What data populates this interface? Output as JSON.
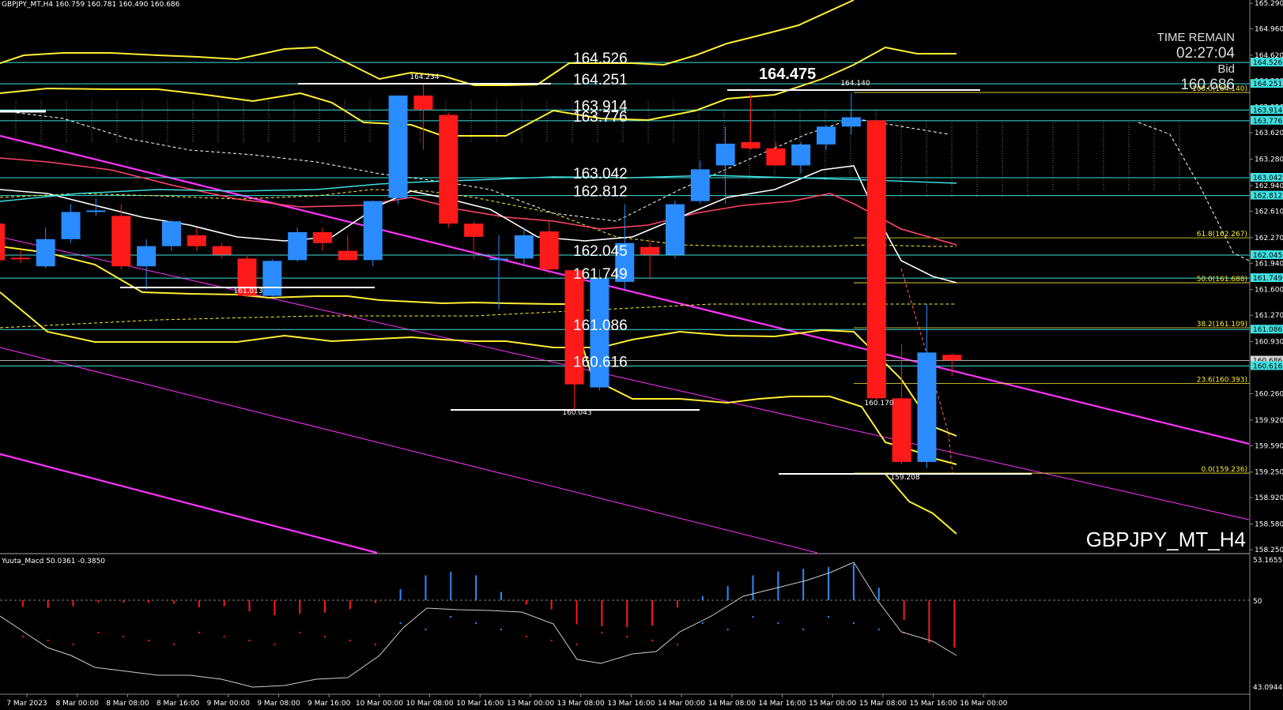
{
  "header": {
    "symbol_info": "GBPJPY_MT,H4  160.759 160.781 160.490 160.686"
  },
  "overlay": {
    "time_remain_label": "TIME REMAIN",
    "time_remain_value": "02:27:04",
    "bid_label": "Bid",
    "bid_value": "160.686",
    "symbol_watermark": "GBPJPY_MT_H4",
    "big_label": "164.475"
  },
  "price_axis": {
    "ticks": [
      "165.290",
      "164.960",
      "164.620",
      "164.290",
      "163.950",
      "163.620",
      "163.280",
      "162.940",
      "162.610",
      "162.270",
      "161.940",
      "161.600",
      "161.270",
      "160.930",
      "160.600",
      "160.260",
      "159.920",
      "159.590",
      "159.250",
      "158.920",
      "158.580",
      "158.250"
    ]
  },
  "level_badges": [
    "164.526",
    "164.251",
    "163.914",
    "163.776",
    "163.042",
    "162.812",
    "162.045",
    "161.749",
    "161.086",
    "160.686",
    "160.616"
  ],
  "level_labels": [
    "164.526",
    "164.251",
    "163.914",
    "163.776",
    "163.042",
    "162.812",
    "162.045",
    "161.749",
    "161.086",
    "160.616"
  ],
  "fib_labels": [
    "100.0(164.140)",
    "61.8(162.267)",
    "50.0(161.688)",
    "38.2(161.109)",
    "23.6(160.393)",
    "0.0(159.236)"
  ],
  "swing_labels": [
    "164.234",
    "161.013",
    "160.043",
    "164.140",
    "160.170",
    "159.208"
  ],
  "time_axis": {
    "ticks": [
      "7 Mar 2023",
      "8 Mar 00:00",
      "8 Mar 08:00",
      "8 Mar 16:00",
      "9 Mar 00:00",
      "9 Mar 08:00",
      "9 Mar 16:00",
      "10 Mar 00:00",
      "10 Mar 08:00",
      "10 Mar 16:00",
      "13 Mar 00:00",
      "13 Mar 08:00",
      "13 Mar 16:00",
      "14 Mar 00:00",
      "14 Mar 08:00",
      "14 Mar 16:00",
      "15 Mar 00:00",
      "15 Mar 08:00",
      "15 Mar 16:00",
      "16 Mar 00:00"
    ]
  },
  "indicator": {
    "title": "Yuuta_Macd 50.0361 -0.3850",
    "axis_top": "53.1655",
    "axis_mid": "50",
    "axis_bottom": "43.0944"
  },
  "colors": {
    "bull": "#2a8cff",
    "bear": "#ff1a1a",
    "yellow": "#ffee33",
    "cyan": "#40e0e0",
    "magenta": "#ff33ff"
  },
  "chart_data": {
    "type": "candlestick",
    "symbol": "GBPJPY_MT",
    "timeframe": "H4",
    "ylim": [
      158.25,
      165.29
    ],
    "candles": [
      {
        "o": 162.45,
        "h": 162.6,
        "l": 161.96,
        "c": 161.98
      },
      {
        "o": 162.01,
        "h": 162.1,
        "l": 161.94,
        "c": 162.0
      },
      {
        "o": 161.9,
        "h": 162.4,
        "l": 161.88,
        "c": 162.25
      },
      {
        "o": 162.25,
        "h": 162.7,
        "l": 162.2,
        "c": 162.6
      },
      {
        "o": 162.6,
        "h": 162.78,
        "l": 162.55,
        "c": 162.62
      },
      {
        "o": 162.55,
        "h": 162.7,
        "l": 161.86,
        "c": 161.9
      },
      {
        "o": 161.9,
        "h": 162.25,
        "l": 161.6,
        "c": 162.16
      },
      {
        "o": 162.16,
        "h": 162.5,
        "l": 162.1,
        "c": 162.48
      },
      {
        "o": 162.3,
        "h": 162.4,
        "l": 162.1,
        "c": 162.16
      },
      {
        "o": 162.16,
        "h": 162.2,
        "l": 162.0,
        "c": 162.05
      },
      {
        "o": 162.0,
        "h": 162.05,
        "l": 161.5,
        "c": 161.52
      },
      {
        "o": 161.52,
        "h": 161.99,
        "l": 161.5,
        "c": 161.97
      },
      {
        "o": 161.98,
        "h": 162.4,
        "l": 161.96,
        "c": 162.34
      },
      {
        "o": 162.34,
        "h": 162.4,
        "l": 162.1,
        "c": 162.2
      },
      {
        "o": 162.1,
        "h": 162.3,
        "l": 161.98,
        "c": 161.98
      },
      {
        "o": 161.98,
        "h": 162.75,
        "l": 161.9,
        "c": 162.74
      },
      {
        "o": 162.78,
        "h": 164.1,
        "l": 162.7,
        "c": 164.1
      },
      {
        "o": 164.1,
        "h": 164.25,
        "l": 163.4,
        "c": 163.92
      },
      {
        "o": 163.85,
        "h": 163.88,
        "l": 162.4,
        "c": 162.45
      },
      {
        "o": 162.45,
        "h": 162.48,
        "l": 162.0,
        "c": 162.28
      },
      {
        "o": 162.0,
        "h": 162.3,
        "l": 161.35,
        "c": 162.0
      },
      {
        "o": 162.0,
        "h": 162.4,
        "l": 161.9,
        "c": 162.3
      },
      {
        "o": 162.35,
        "h": 162.5,
        "l": 161.8,
        "c": 161.86
      },
      {
        "o": 161.85,
        "h": 161.85,
        "l": 160.05,
        "c": 160.38
      },
      {
        "o": 160.34,
        "h": 161.86,
        "l": 160.3,
        "c": 161.75
      },
      {
        "o": 161.7,
        "h": 162.7,
        "l": 161.6,
        "c": 162.2
      },
      {
        "o": 162.15,
        "h": 162.25,
        "l": 161.74,
        "c": 162.05
      },
      {
        "o": 162.05,
        "h": 162.75,
        "l": 162.0,
        "c": 162.7
      },
      {
        "o": 162.74,
        "h": 163.26,
        "l": 162.7,
        "c": 163.15
      },
      {
        "o": 163.2,
        "h": 163.7,
        "l": 162.7,
        "c": 163.48
      },
      {
        "o": 163.5,
        "h": 164.12,
        "l": 163.4,
        "c": 163.42
      },
      {
        "o": 163.42,
        "h": 163.5,
        "l": 163.2,
        "c": 163.2
      },
      {
        "o": 163.2,
        "h": 163.5,
        "l": 163.1,
        "c": 163.47
      },
      {
        "o": 163.47,
        "h": 163.72,
        "l": 163.4,
        "c": 163.7
      },
      {
        "o": 163.7,
        "h": 164.14,
        "l": 163.6,
        "c": 163.82
      },
      {
        "o": 163.78,
        "h": 163.79,
        "l": 160.17,
        "c": 160.2
      },
      {
        "o": 160.2,
        "h": 160.9,
        "l": 159.35,
        "c": 159.38
      },
      {
        "o": 159.38,
        "h": 161.42,
        "l": 159.3,
        "c": 160.79
      },
      {
        "o": 160.76,
        "h": 160.78,
        "l": 160.49,
        "c": 160.69
      }
    ]
  }
}
